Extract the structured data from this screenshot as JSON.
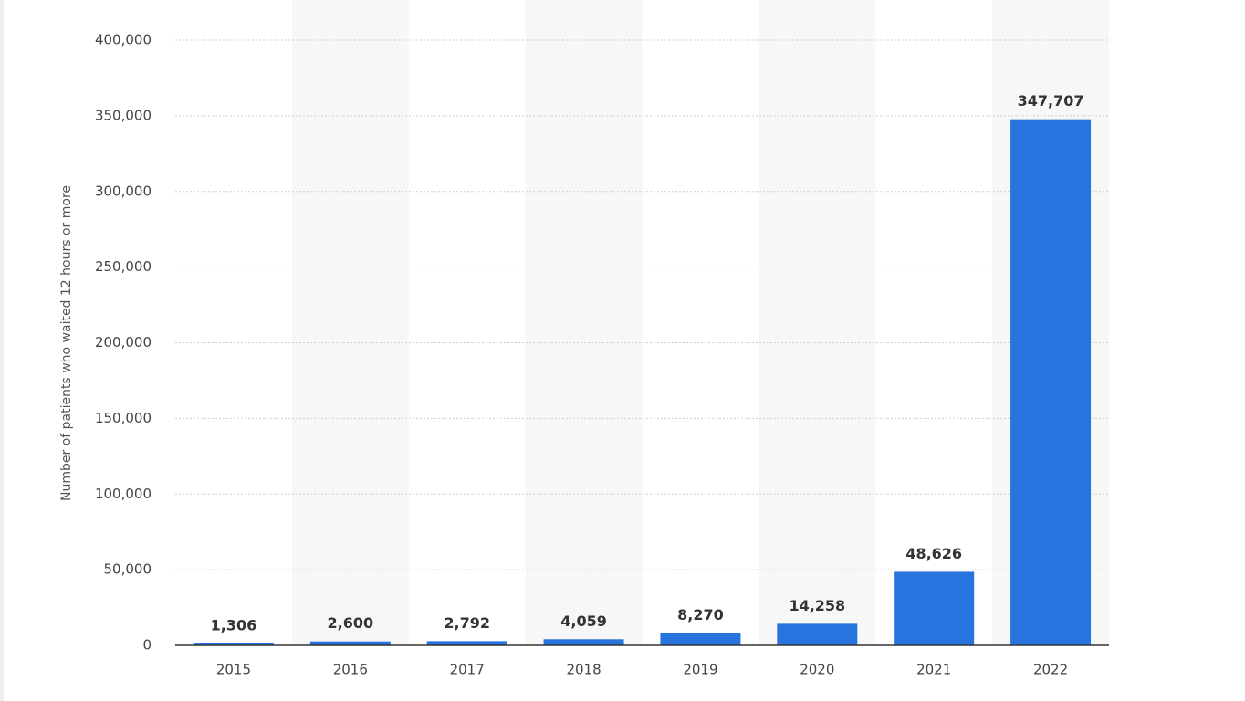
{
  "chart_data": {
    "type": "bar",
    "y_axis_label": "Number of patients who waited 12 hours or more",
    "categories": [
      "2015",
      "2016",
      "2017",
      "2018",
      "2019",
      "2020",
      "2021",
      "2022"
    ],
    "values": [
      1306,
      2600,
      2792,
      4059,
      8270,
      14258,
      48626,
      347707
    ],
    "value_labels": [
      "1,306",
      "2,600",
      "2,792",
      "4,059",
      "8,270",
      "14,258",
      "48,626",
      "347,707"
    ],
    "color": "#2874de",
    "ylim": [
      0,
      400000
    ],
    "yticks": [
      0,
      {
        "value": 50000,
        "label": "50,000"
      },
      {
        "value": 100000,
        "label": "100,000"
      },
      {
        "value": 150000,
        "label": "150,000"
      },
      {
        "value": 200000,
        "label": "200,000"
      },
      {
        "value": 250000,
        "label": "250,000"
      },
      {
        "value": 300000,
        "label": "300,000"
      },
      {
        "value": 350000,
        "label": "350,000"
      },
      {
        "value": 400000,
        "label": "400,000"
      }
    ],
    "grid": true
  }
}
